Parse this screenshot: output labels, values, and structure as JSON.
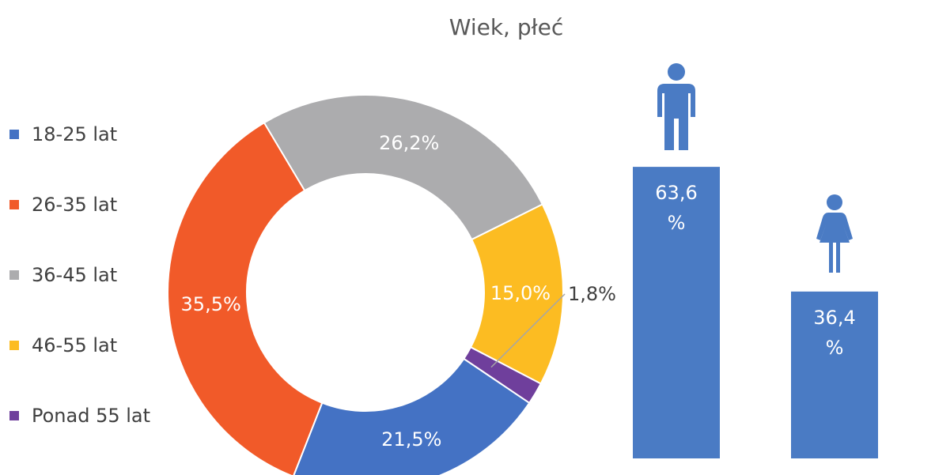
{
  "chart_data": [
    {
      "type": "donut",
      "title": "Wiek, płeć",
      "categories": [
        "18-25 lat",
        "26-35 lat",
        "36-45 lat",
        "46-55 lat",
        "Ponad 55 lat"
      ],
      "values": [
        21.5,
        35.5,
        26.2,
        15.0,
        1.8
      ],
      "value_labels": [
        "21,5%",
        "35,5%",
        "26,2%",
        "15,0%",
        "1,8%"
      ],
      "colors": [
        "#4472c4",
        "#f15a29",
        "#acacae",
        "#fcbc22",
        "#6f3f9c"
      ],
      "legend": "left"
    },
    {
      "type": "bar",
      "categories": [
        null,
        null
      ],
      "values": [
        63.6,
        36.4
      ],
      "value_labels": [
        "63,6 %",
        "36,4 %"
      ],
      "color": "#4a7bc4",
      "ylim": [
        0,
        100
      ]
    }
  ]
}
